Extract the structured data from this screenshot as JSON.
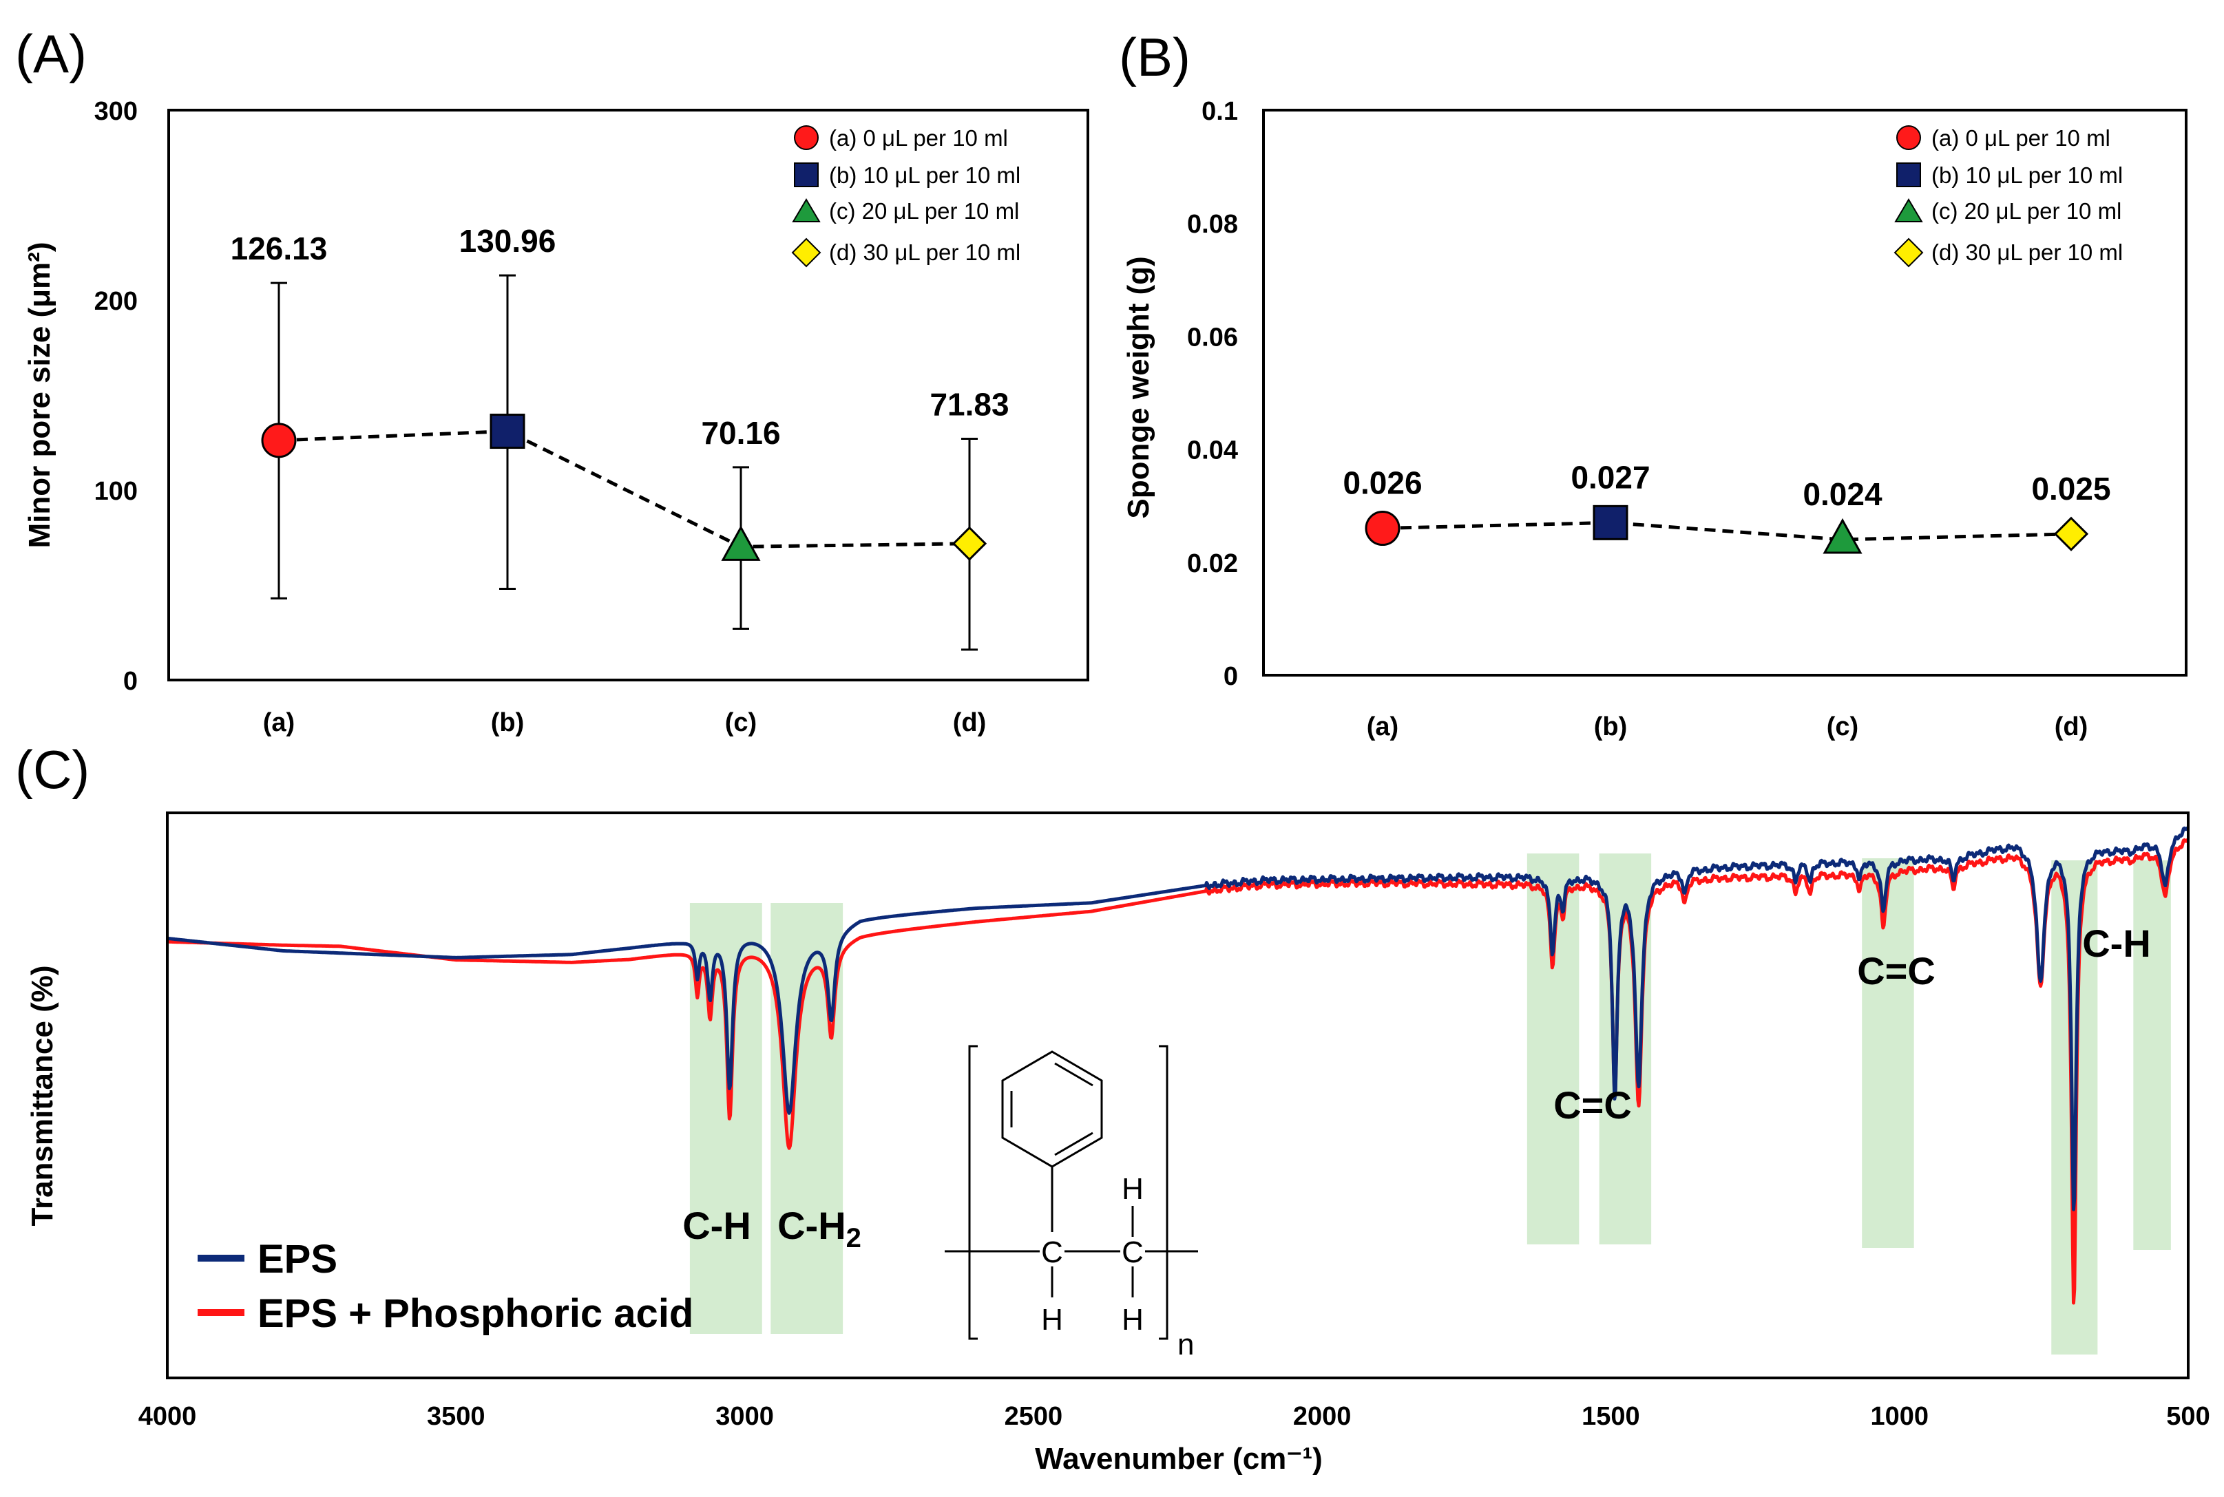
{
  "colors": {
    "red": "#ff1a1a",
    "navy": "#10206a",
    "green": "#1e9a3c",
    "yellow": "#ffee00",
    "band": "#d4ecd0",
    "eps_line": "#0c2a78",
    "eps_acid_line": "#ff1515"
  },
  "chart_data": [
    {
      "id": "A",
      "panel_label": "(A)",
      "type": "line",
      "ylabel": "Minor pore size (μm²)",
      "ylim": [
        0,
        300
      ],
      "yticks": [
        "0",
        "100",
        "200",
        "300"
      ],
      "categories": [
        "(a)",
        "(b)",
        "(c)",
        "(d)"
      ],
      "values": [
        126.13,
        130.96,
        70.16,
        71.83
      ],
      "value_labels": [
        "126.13",
        "130.96",
        "70.16",
        "71.83"
      ],
      "error_low": [
        43,
        48,
        27,
        16
      ],
      "error_high": [
        209,
        213,
        112,
        127
      ],
      "markers": [
        "circle",
        "square",
        "triangle",
        "diamond"
      ],
      "legend": [
        "(a) 0 μL per 10 ml",
        "(b) 10 μL per 10 ml",
        "(c) 20 μL per 10 ml",
        "(d) 30 μL per 10 ml"
      ]
    },
    {
      "id": "B",
      "panel_label": "(B)",
      "type": "line",
      "ylabel": "Sponge weight (g)",
      "ylim": [
        0,
        0.1
      ],
      "yticks": [
        "0",
        "0.02",
        "0.04",
        "0.06",
        "0.08",
        "0.1"
      ],
      "categories": [
        "(a)",
        "(b)",
        "(c)",
        "(d)"
      ],
      "values": [
        0.026,
        0.027,
        0.024,
        0.025
      ],
      "value_labels": [
        "0.026",
        "0.027",
        "0.024",
        "0.025"
      ],
      "markers": [
        "circle",
        "square",
        "triangle",
        "diamond"
      ],
      "legend": [
        "(a) 0 μL per 10 ml",
        "(b) 10 μL per 10 ml",
        "(c) 20 μL per 10 ml",
        "(d) 30 μL per 10 ml"
      ]
    },
    {
      "id": "C",
      "panel_label": "(C)",
      "type": "line",
      "xlabel": "Wavenumber (cm⁻¹)",
      "ylabel": "Transmittance (%)",
      "xlim": [
        4000,
        500
      ],
      "xticks": [
        "4000",
        "3500",
        "3000",
        "2500",
        "2000",
        "1500",
        "1000",
        "500"
      ],
      "legend": [
        "EPS",
        "EPS + Phosphoric acid"
      ],
      "band_labels": [
        "C-H",
        "C-H2",
        "C=C",
        "C=C",
        "C-H"
      ],
      "bands": [
        {
          "from": 3095,
          "to": 2970,
          "label": "C-H"
        },
        {
          "from": 2955,
          "to": 2830,
          "label": "C-H₂"
        },
        {
          "from": 1645,
          "to": 1555,
          "label": ""
        },
        {
          "from": 1520,
          "to": 1430,
          "label": "C=C"
        },
        {
          "from": 1065,
          "to": 975,
          "label": "C=C"
        },
        {
          "from": 737,
          "to": 657,
          "label": ""
        },
        {
          "from": 595,
          "to": 530,
          "label": "C-H"
        }
      ],
      "structure_labels": [
        "C",
        "C",
        "H",
        "H",
        "H",
        "n"
      ],
      "series": [
        {
          "name": "EPS",
          "baseline": [
            [
              4000,
              22.2
            ],
            [
              3800,
              24.4
            ],
            [
              3500,
              25.6
            ],
            [
              3300,
              25
            ],
            [
              3200,
              23.8
            ],
            [
              3110,
              22.6
            ],
            [
              3050,
              21.2
            ],
            [
              2950,
              20.8
            ],
            [
              2860,
              21.1
            ],
            [
              2800,
              18.5
            ],
            [
              2600,
              16.8
            ],
            [
              2400,
              15.9
            ],
            [
              2200,
              12.8
            ],
            [
              2100,
              11.9
            ],
            [
              1900,
              11.6
            ],
            [
              1700,
              11.3
            ],
            [
              1500,
              11.1
            ],
            [
              1300,
              9.5
            ],
            [
              1100,
              8.7
            ],
            [
              900,
              7.9
            ],
            [
              800,
              5.3
            ],
            [
              700,
              5.9
            ],
            [
              600,
              6.5
            ],
            [
              505,
              2.8
            ]
          ],
          "peaks": [
            [
              3082,
              6.5,
              4
            ],
            [
              3060,
              10.5,
              5
            ],
            [
              3026,
              27,
              6
            ],
            [
              2923,
              32,
              14
            ],
            [
              2850,
              15,
              7
            ],
            [
              1601,
              13,
              5
            ],
            [
              1583,
              5,
              4
            ],
            [
              1493,
              39,
              5
            ],
            [
              1452,
              37,
              7
            ],
            [
              1372,
              4,
              4
            ],
            [
              1180,
              3,
              4
            ],
            [
              1155,
              3,
              4
            ],
            [
              1069,
              3,
              4
            ],
            [
              1028,
              9,
              5
            ],
            [
              907,
              4,
              4
            ],
            [
              756,
              24,
              8
            ],
            [
              698,
              64,
              5
            ],
            [
              540,
              9,
              7
            ]
          ]
        },
        {
          "name": "EPS + Phosphoric acid",
          "baseline": [
            [
              4000,
              22.8
            ],
            [
              3800,
              23.4
            ],
            [
              3700,
              23.6
            ],
            [
              3500,
              26
            ],
            [
              3300,
              26.4
            ],
            [
              3200,
              25.8
            ],
            [
              3110,
              24.5
            ],
            [
              3050,
              23.5
            ],
            [
              2950,
              22.9
            ],
            [
              2860,
              23.5
            ],
            [
              2800,
              21.3
            ],
            [
              2600,
              19.2
            ],
            [
              2400,
              17.4
            ],
            [
              2200,
              13.8
            ],
            [
              2100,
              12.7
            ],
            [
              1900,
              12.4
            ],
            [
              1700,
              12.6
            ],
            [
              1500,
              12.4
            ],
            [
              1300,
              11.4
            ],
            [
              1100,
              10.9
            ],
            [
              900,
              9.4
            ],
            [
              800,
              7.1
            ],
            [
              700,
              7.6
            ],
            [
              600,
              8
            ],
            [
              505,
              4.9
            ]
          ],
          "peaks": [
            [
              3082,
              7.5,
              4
            ],
            [
              3060,
              11.5,
              5
            ],
            [
              3026,
              30,
              6
            ],
            [
              2923,
              36,
              14
            ],
            [
              2850,
              15.5,
              7
            ],
            [
              1601,
              14,
              5
            ],
            [
              1583,
              5,
              4
            ],
            [
              1493,
              37,
              5
            ],
            [
              1452,
              39,
              7
            ],
            [
              1372,
              4,
              4
            ],
            [
              1180,
              3,
              4
            ],
            [
              1155,
              3,
              4
            ],
            [
              1069,
              3,
              4
            ],
            [
              1028,
              10,
              5
            ],
            [
              907,
              4,
              4
            ],
            [
              756,
              23,
              8
            ],
            [
              698,
              79,
              5
            ],
            [
              540,
              9,
              7
            ]
          ]
        }
      ]
    }
  ]
}
